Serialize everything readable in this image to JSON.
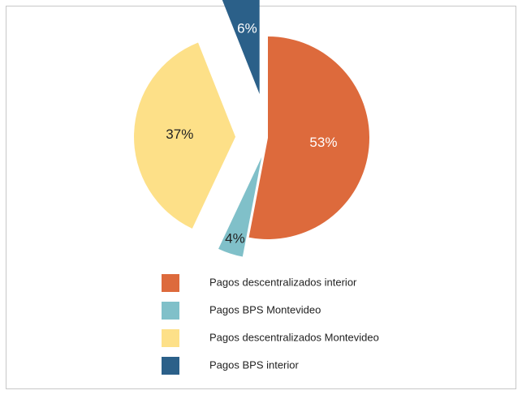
{
  "chart_data": {
    "type": "pie",
    "categories": [
      "Pagos descentralizados interior",
      "Pagos BPS Montevideo",
      "Pagos descentralizados Montevideo",
      "Pagos BPS interior"
    ],
    "values": [
      53,
      4,
      37,
      6
    ],
    "value_labels": [
      "53%",
      "4%",
      "37%",
      "6%"
    ],
    "colors": [
      "#dd6a3c",
      "#80c0c9",
      "#fde088",
      "#2b6089"
    ],
    "legend": "bottom"
  }
}
